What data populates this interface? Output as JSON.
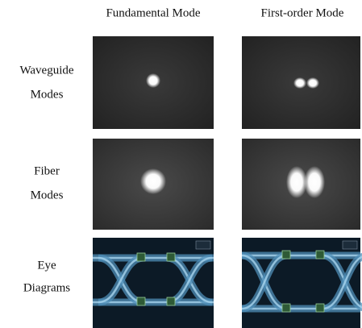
{
  "header": {
    "columns": [
      "Fundamental Mode",
      "First-order Mode"
    ]
  },
  "rows": [
    {
      "label": [
        "Waveguide",
        "Modes"
      ]
    },
    {
      "label": [
        "Fiber",
        "Modes"
      ]
    },
    {
      "label": [
        "Eye",
        "Diagrams"
      ]
    }
  ]
}
